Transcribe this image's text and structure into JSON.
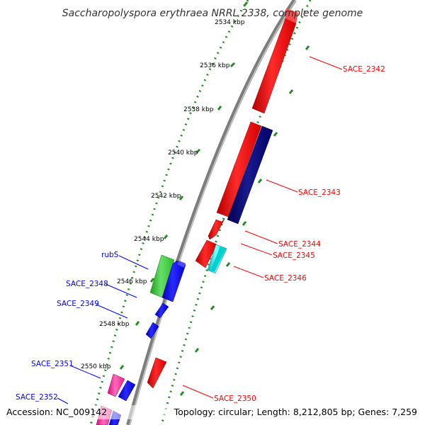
{
  "title": "Saccharopolyspora erythraea NRRL 2338, complete genome",
  "footer": {
    "accession": "Accession: NC_009142",
    "summary": "Topology: circular; Length: 8,212,805 bp; Genes: 7,259"
  },
  "ticks": [
    "2534 kbp",
    "2536 kbp",
    "2538 kbp",
    "2540 kbp",
    "2542 kbp",
    "2544 kbp",
    "2546 kbp",
    "2548 kbp",
    "2550 kbp"
  ],
  "labels_right": [
    "SACE_2342",
    "SACE_2343",
    "SACE_2344",
    "SACE_2345",
    "SACE_2346",
    "SACE_2350"
  ],
  "labels_left": [
    "rubS",
    "SACE_2348",
    "SACE_2349",
    "SACE_2351",
    "SACE_2352"
  ],
  "colors": {
    "plus_strand": "#ff0000",
    "minus_strand": "#0000ff",
    "dark_blue": "#000080",
    "cyan": "#00e5e5",
    "green": "#33cc33",
    "magenta": "#ff1493",
    "tick": "#228b22",
    "backbone": "#888888"
  }
}
